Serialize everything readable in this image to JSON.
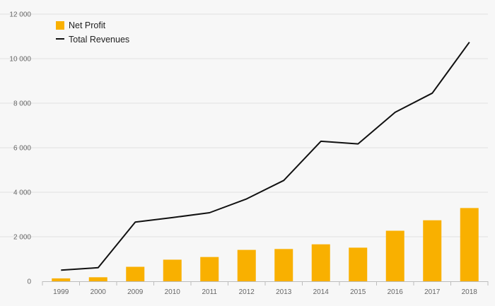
{
  "chart_data": {
    "type": "bar+line",
    "categories": [
      "1999",
      "2000",
      "2009",
      "2010",
      "2011",
      "2012",
      "2013",
      "2014",
      "2015",
      "2016",
      "2017",
      "2018"
    ],
    "series": [
      {
        "name": "Net Profit",
        "type": "bar",
        "color": "#f9b000",
        "values": [
          130,
          180,
          650,
          970,
          1090,
          1410,
          1450,
          1660,
          1510,
          2270,
          2740,
          3290
        ]
      },
      {
        "name": "Total Revenues",
        "type": "line",
        "color": "#111111",
        "values": [
          500,
          610,
          2660,
          2860,
          3080,
          3700,
          4530,
          6290,
          6170,
          7590,
          8450,
          10740
        ]
      }
    ],
    "ylim": [
      0,
      12000
    ],
    "yticks": [
      0,
      2000,
      4000,
      6000,
      8000,
      10000,
      12000
    ],
    "ytick_labels": [
      "0",
      "2 000",
      "4 000",
      "6 000",
      "8 000",
      "10 000",
      "12 000"
    ],
    "grid": true,
    "legend_position": "top-left",
    "title": "",
    "xlabel": "",
    "ylabel": ""
  }
}
